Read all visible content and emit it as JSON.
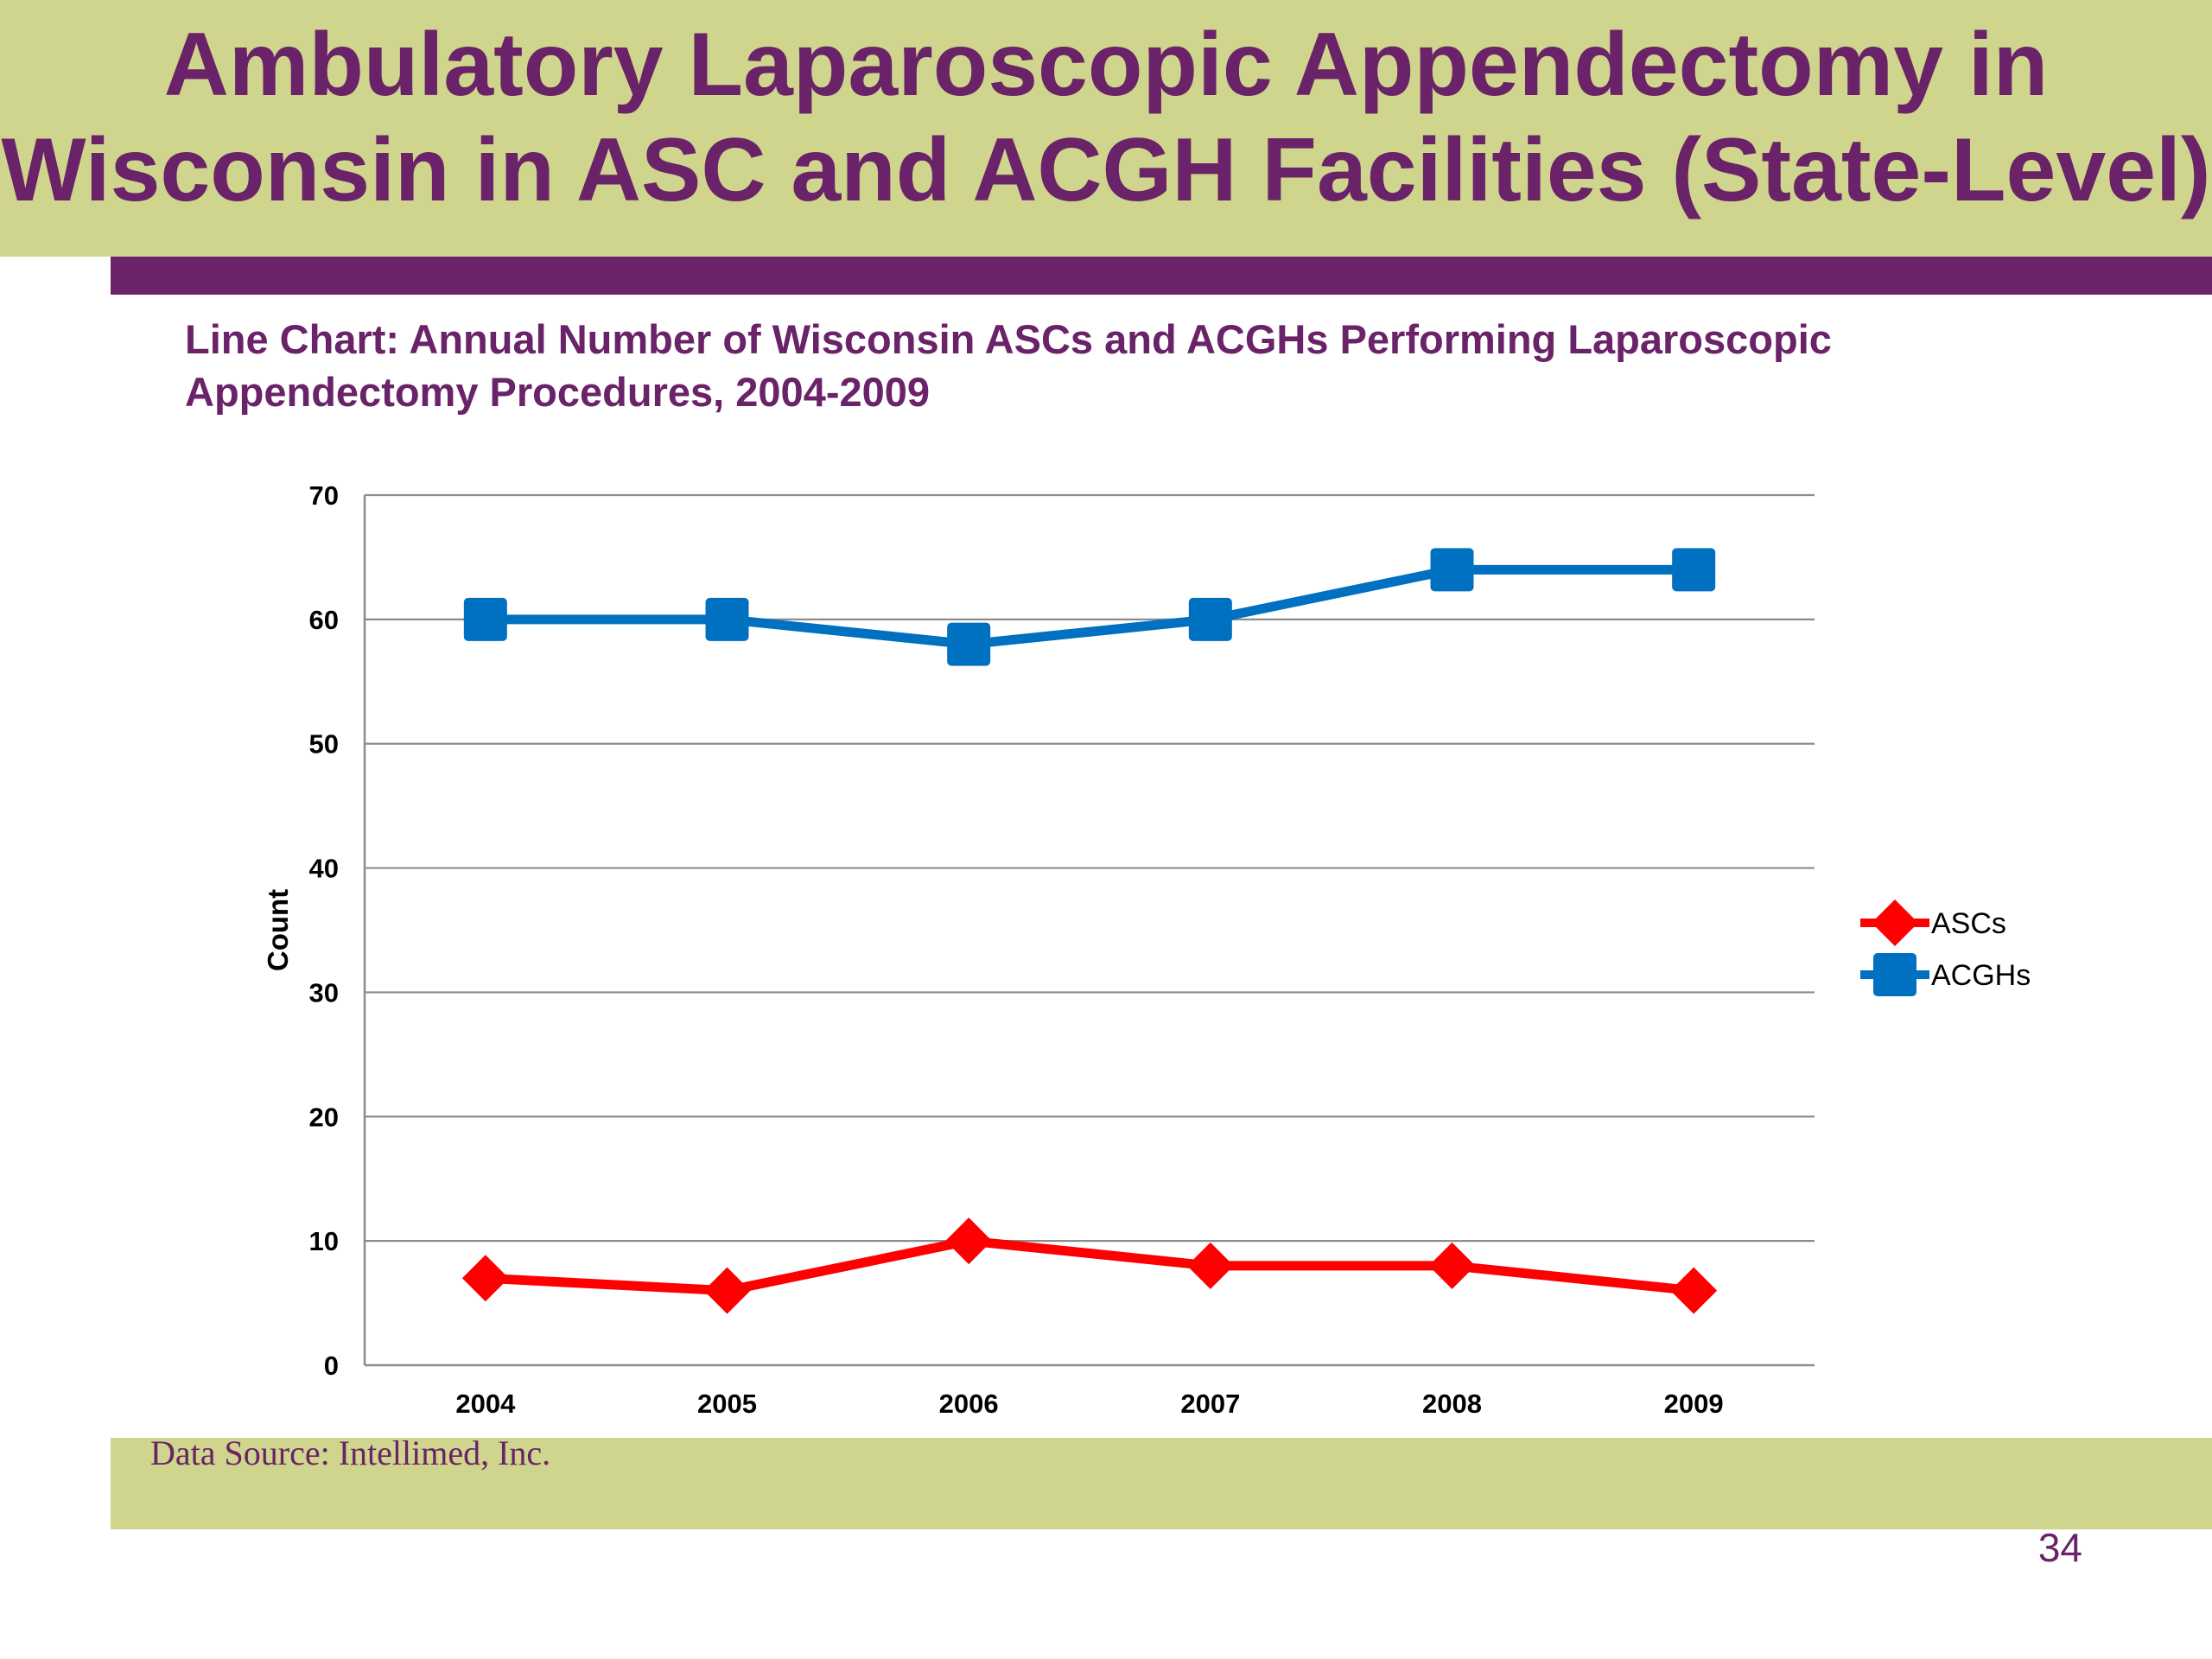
{
  "slide": {
    "title_line1": "Ambulatory Laparoscopic Appendectomy in",
    "title_line2": "Wisconsin in ASC and ACGH Facilities (State-Level)",
    "source": "Data Source: Intellimed, Inc.",
    "page_number": "34"
  },
  "colors": {
    "accent_band": "#cfd58c",
    "title_purple": "#6a2268",
    "asc_series": "#ff0000",
    "acgh_series": "#0070c0"
  },
  "chart_data": {
    "type": "line",
    "title_line1": "Line Chart: Annual Number of Wisconsin ASCs and ACGHs Performing Laparoscopic",
    "title_line2": "Appendectomy Procedures, 2004-2009",
    "xlabel": "",
    "ylabel": "Count",
    "categories": [
      "2004",
      "2005",
      "2006",
      "2007",
      "2008",
      "2009"
    ],
    "ylim": [
      0,
      70
    ],
    "yticks": [
      0,
      10,
      20,
      30,
      40,
      50,
      60,
      70
    ],
    "grid": true,
    "legend_position": "right",
    "series": [
      {
        "name": "ASCs",
        "marker": "diamond",
        "color": "#ff0000",
        "values": [
          7,
          6,
          10,
          8,
          8,
          6
        ]
      },
      {
        "name": "ACGHs",
        "marker": "square",
        "color": "#0070c0",
        "values": [
          60,
          60,
          58,
          60,
          64,
          64
        ]
      }
    ]
  }
}
